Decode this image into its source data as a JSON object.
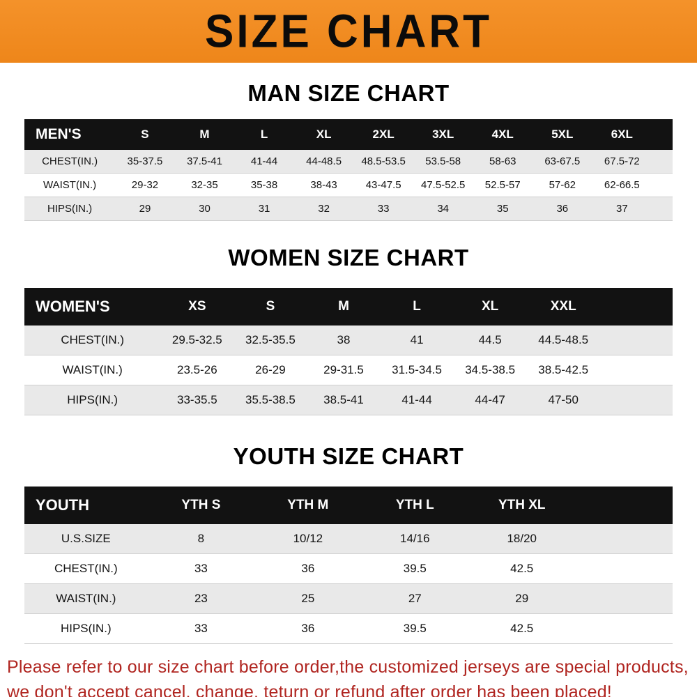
{
  "colors": {
    "banner_orange": "#ee861a",
    "banner_orange_light": "#f4922a",
    "table_header_black": "#121212",
    "row_stripe_gray": "#e9e9e9",
    "disclaimer_red": "#b02520"
  },
  "banner": {
    "title": "SIZE CHART"
  },
  "chart_data": [
    {
      "type": "table",
      "title": "MAN SIZE CHART",
      "columns": [
        "MEN'S",
        "S",
        "M",
        "L",
        "XL",
        "2XL",
        "3XL",
        "4XL",
        "5XL",
        "6XL"
      ],
      "rows": [
        [
          "CHEST(IN.)",
          "35-37.5",
          "37.5-41",
          "41-44",
          "44-48.5",
          "48.5-53.5",
          "53.5-58",
          "58-63",
          "63-67.5",
          "67.5-72"
        ],
        [
          "WAIST(IN.)",
          "29-32",
          "32-35",
          "35-38",
          "38-43",
          "43-47.5",
          "47.5-52.5",
          "52.5-57",
          "57-62",
          "62-66.5"
        ],
        [
          "HIPS(IN.)",
          "29",
          "30",
          "31",
          "32",
          "33",
          "34",
          "35",
          "36",
          "37"
        ]
      ]
    },
    {
      "type": "table",
      "title": "WOMEN SIZE CHART",
      "columns": [
        "WOMEN'S",
        "XS",
        "S",
        "M",
        "L",
        "XL",
        "XXL"
      ],
      "rows": [
        [
          "CHEST(IN.)",
          "29.5-32.5",
          "32.5-35.5",
          "38",
          "41",
          "44.5",
          "44.5-48.5"
        ],
        [
          "WAIST(IN.)",
          "23.5-26",
          "26-29",
          "29-31.5",
          "31.5-34.5",
          "34.5-38.5",
          "38.5-42.5"
        ],
        [
          "HIPS(IN.)",
          "33-35.5",
          "35.5-38.5",
          "38.5-41",
          "41-44",
          "44-47",
          "47-50"
        ]
      ]
    },
    {
      "type": "table",
      "title": "YOUTH SIZE CHART",
      "columns": [
        "YOUTH",
        "YTH S",
        "YTH M",
        "YTH L",
        "YTH XL"
      ],
      "rows": [
        [
          "U.S.SIZE",
          "8",
          "10/12",
          "14/16",
          "18/20"
        ],
        [
          "CHEST(IN.)",
          "33",
          "36",
          "39.5",
          "42.5"
        ],
        [
          "WAIST(IN.)",
          "23",
          "25",
          "27",
          "29"
        ],
        [
          "HIPS(IN.)",
          "33",
          "36",
          "39.5",
          "42.5"
        ]
      ]
    }
  ],
  "disclaimer": {
    "lines": [
      "Please refer to our size chart before order,the customized jerseys are special products,",
      "we don't accept cancel, change, teturn or refund after order has been placed!"
    ]
  }
}
